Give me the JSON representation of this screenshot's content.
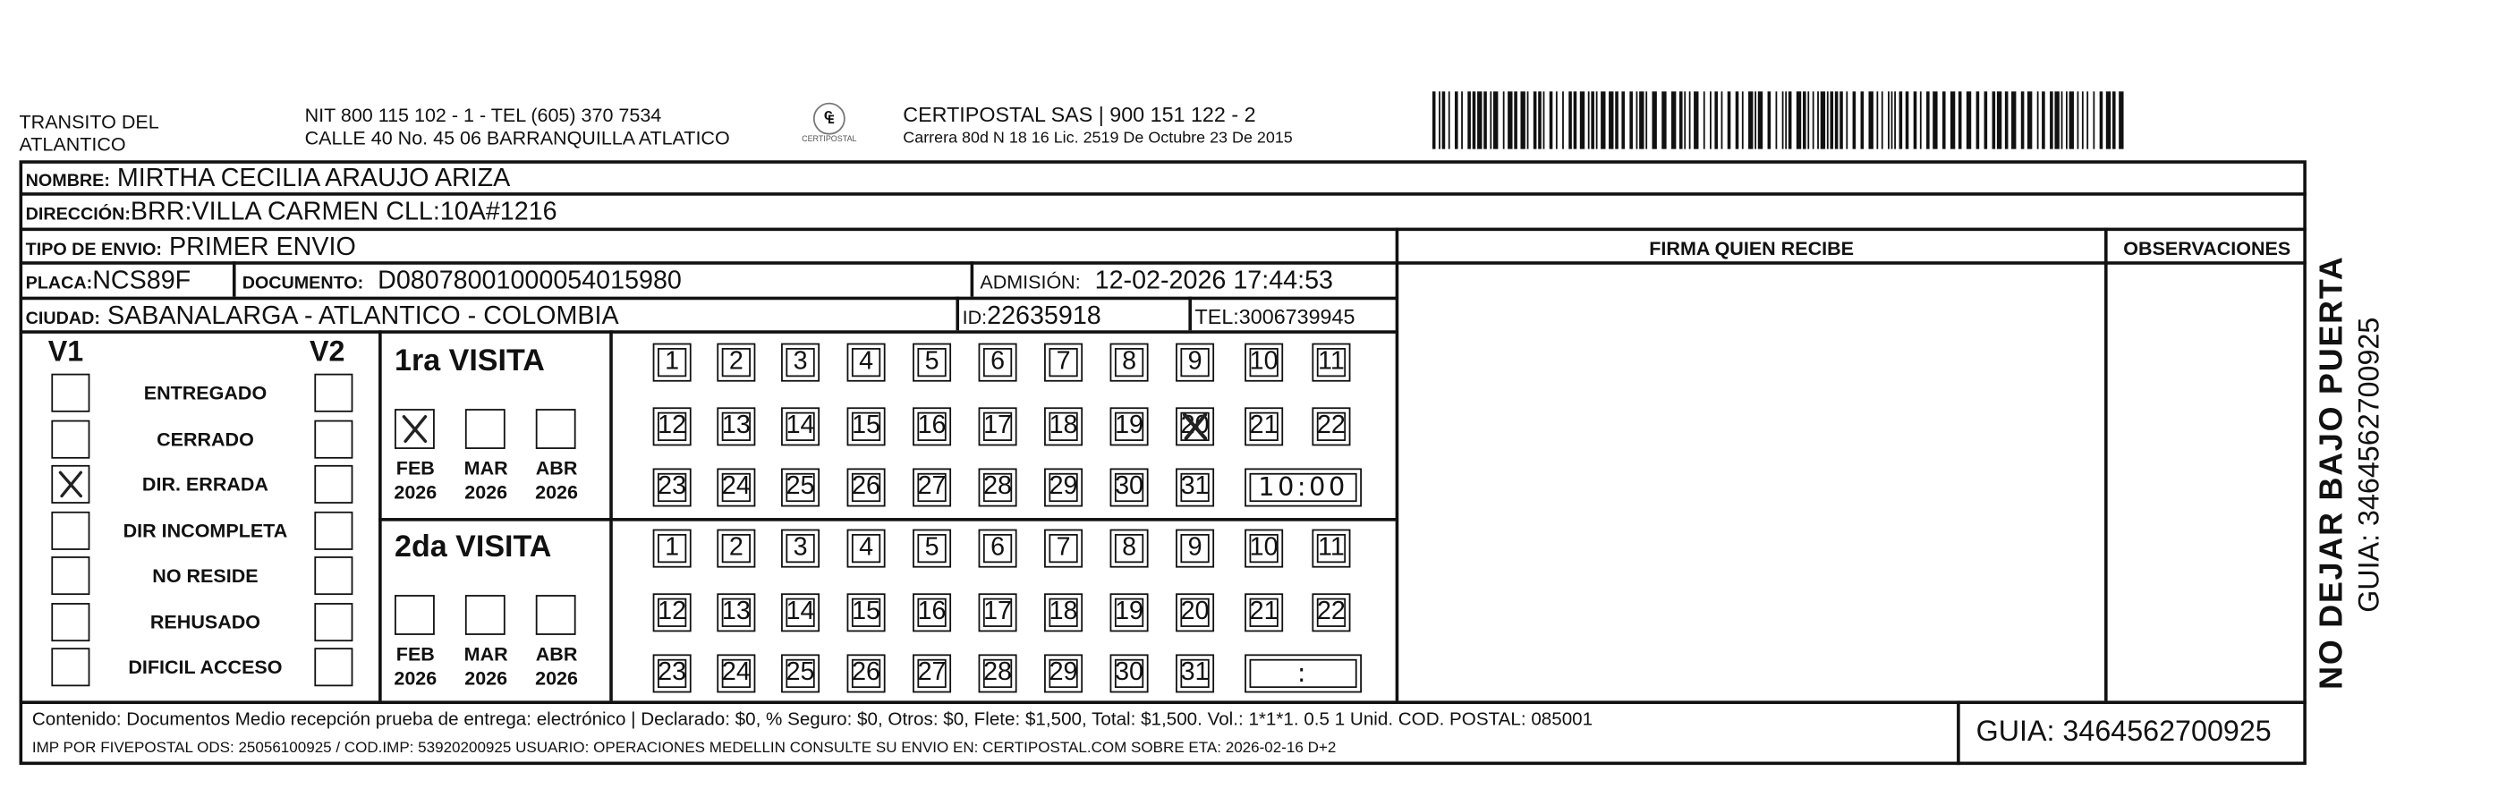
{
  "header": {
    "issuer_line1": "TRANSITO DEL",
    "issuer_line2": "ATLANTICO",
    "nit": "NIT 800 115 102 - 1 - TEL (605) 370 7534",
    "address": "CALLE 40 No. 45 06 BARRANQUILLA ATLATICO",
    "logo_text": "CERTIPOSTAL",
    "company": "CERTIPOSTAL SAS | 900 151 122 - 2",
    "company_address": "Carrera 80d N 18 16  Lic. 2519 De Octubre 23 De 2015"
  },
  "recipient": {
    "nombre_label": "NOMBRE:",
    "nombre": "MIRTHA CECILIA ARAUJO ARIZA",
    "direccion_label": "DIRECCIÓN:",
    "direccion": "BRR:VILLA CARMEN CLL:10A#1216",
    "tipo_label": "TIPO DE ENVIO:",
    "tipo": "PRIMER ENVIO",
    "placa_label": "PLACA:",
    "placa": "NCS89F",
    "documento_label": "DOCUMENTO:",
    "documento": "D08078001000054015980",
    "admision_label": "ADMISIÓN:",
    "admision": "12-02-2026 17:44:53",
    "ciudad_label": "CIUDAD:",
    "ciudad": "SABANALARGA - ATLANTICO - COLOMBIA",
    "id_label": "ID:",
    "id": "22635918",
    "tel_label": "TEL:",
    "tel": "3006739945"
  },
  "firma_label": "FIRMA QUIEN RECIBE",
  "observaciones_label": "OBSERVACIONES",
  "status": {
    "v1": "V1",
    "v2": "V2",
    "options": [
      "ENTREGADO",
      "CERRADO",
      "DIR. ERRADA",
      "DIR INCOMPLETA",
      "NO RESIDE",
      "REHUSADO",
      "DIFICIL ACCESO"
    ],
    "v1_checked": [
      false,
      false,
      true,
      false,
      false,
      false,
      false
    ],
    "v2_checked": [
      false,
      false,
      false,
      false,
      false,
      false,
      false
    ]
  },
  "visits": [
    {
      "title": "1ra VISITA",
      "months": [
        {
          "m": "FEB",
          "y": "2026",
          "checked": true
        },
        {
          "m": "MAR",
          "y": "2026",
          "checked": false
        },
        {
          "m": "ABR",
          "y": "2026",
          "checked": false
        }
      ],
      "marked_day": "20",
      "time": "10:00"
    },
    {
      "title": "2da VISITA",
      "months": [
        {
          "m": "FEB",
          "y": "2026",
          "checked": false
        },
        {
          "m": "MAR",
          "y": "2026",
          "checked": false
        },
        {
          "m": "ABR",
          "y": "2026",
          "checked": false
        }
      ],
      "marked_day": null,
      "time": ":"
    }
  ],
  "days": [
    "1",
    "2",
    "3",
    "4",
    "5",
    "6",
    "7",
    "8",
    "9",
    "10",
    "11",
    "12",
    "13",
    "14",
    "15",
    "16",
    "17",
    "18",
    "19",
    "20",
    "21",
    "22",
    "23",
    "24",
    "25",
    "26",
    "27",
    "28",
    "29",
    "30",
    "31"
  ],
  "footer": {
    "contenido": "Contenido: Documentos Medio recepción prueba de entrega: electrónico | Declarado: $0, % Seguro: $0, Otros: $0, Flete: $1,500, Total: $1,500. Vol.: 1*1*1. 0.5  1 Unid. COD. POSTAL: 085001",
    "imp": "IMP POR FIVEPOSTAL ODS: 25056100925 / COD.IMP: 53920200925 USUARIO: OPERACIONES MEDELLIN CONSULTE SU ENVIO EN: CERTIPOSTAL.COM SOBRE ETA: 2026-02-16 D+2",
    "guia": "GUIA: 3464562700925"
  },
  "side": {
    "warning": "NO DEJAR BAJO PUERTA",
    "guia": "GUIA: 3464562700925"
  }
}
